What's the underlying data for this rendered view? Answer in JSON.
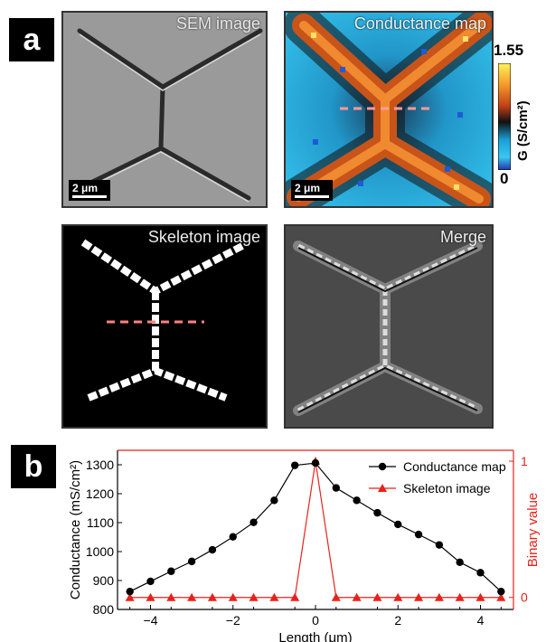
{
  "panel_a": {
    "label": "a",
    "tiles": {
      "sem": {
        "title": "SEM image",
        "scale": "2 μm"
      },
      "conductance": {
        "title": "Conductance map",
        "scale": "2 μm"
      },
      "skeleton": {
        "title": "Skeleton image"
      },
      "merge": {
        "title": "Merge"
      }
    },
    "colorbar": {
      "max": "1.55",
      "min": "0",
      "label": "G (S/cm²)"
    }
  },
  "panel_b": {
    "label": "b"
  },
  "colors": {
    "conductance_series": "#000000",
    "skeleton_series": "#e8221b",
    "dashed_marker": "#ff6666",
    "sem_background": "#9a9a9a",
    "map_background": "#33b8e8",
    "map_ridge": "#e8701e"
  },
  "chart_data": {
    "type": "line",
    "xlabel": "Length (μm)",
    "ylabel": "Conductance (mS/cm²)",
    "y2label": "Binary value",
    "xlim": [
      -4.8,
      4.8
    ],
    "ylim": [
      800,
      1350
    ],
    "y2lim": [
      -0.088,
      1.08
    ],
    "xticks": [
      -4,
      -2,
      0,
      2,
      4
    ],
    "yticks": [
      800,
      900,
      1000,
      1100,
      1200,
      1300
    ],
    "y2ticks": [
      0,
      1
    ],
    "legend_position": "top-right",
    "series": [
      {
        "name": "Conductance map",
        "axis": "left",
        "marker": "circle",
        "x": [
          -4.5,
          -4,
          -3.5,
          -3,
          -2.5,
          -2,
          -1.5,
          -1,
          -0.5,
          0,
          0.5,
          1,
          1.5,
          2,
          2.5,
          3,
          3.5,
          4,
          4.5
        ],
        "values": [
          862,
          897,
          932,
          966,
          1006,
          1051,
          1101,
          1177,
          1298,
          1306,
          1220,
          1177,
          1134,
          1094,
          1059,
          1023,
          963,
          927,
          862
        ]
      },
      {
        "name": "Skeleton image",
        "axis": "right",
        "marker": "triangle",
        "x": [
          -4.5,
          -4,
          -3.5,
          -3,
          -2.5,
          -2,
          -1.5,
          -1,
          -0.5,
          0,
          0.5,
          1,
          1.5,
          2,
          2.5,
          3,
          3.5,
          4,
          4.5
        ],
        "values": [
          0,
          0,
          0,
          0,
          0,
          0,
          0,
          0,
          0,
          1,
          0,
          0,
          0,
          0,
          0,
          0,
          0,
          0,
          0
        ]
      }
    ]
  }
}
